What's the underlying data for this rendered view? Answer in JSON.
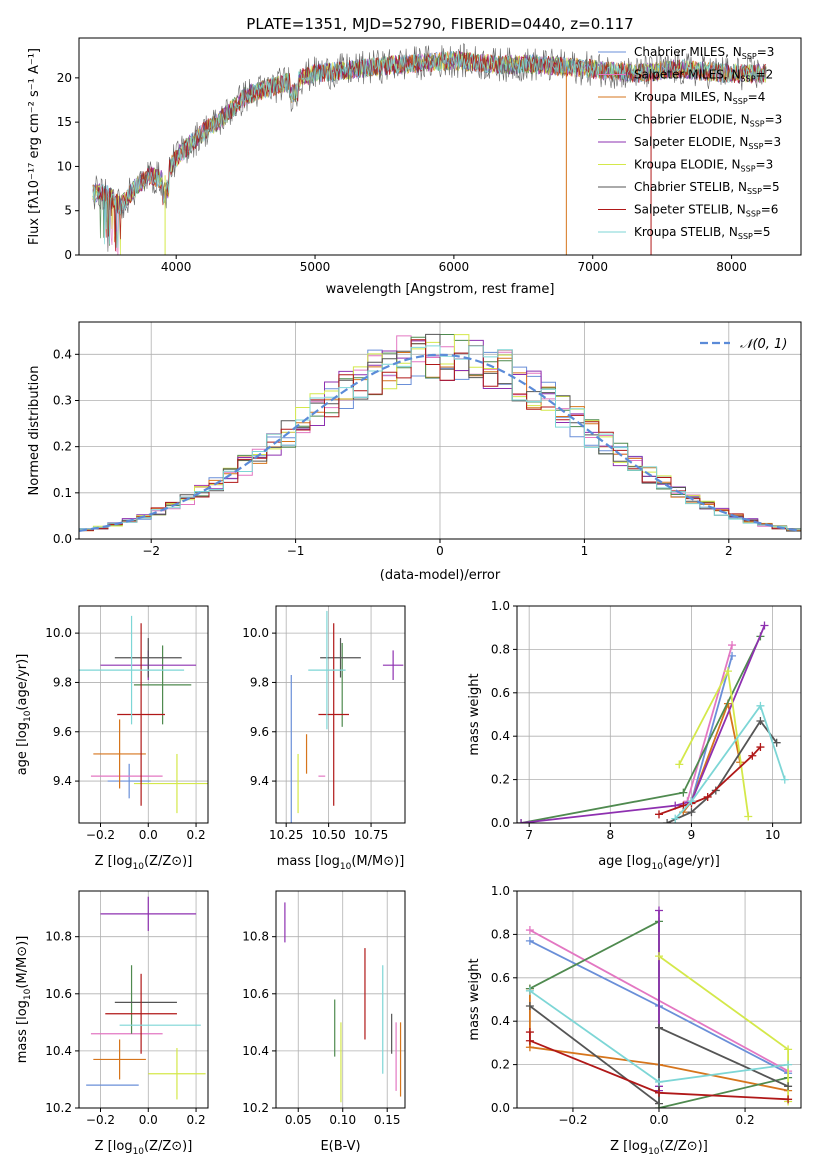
{
  "figure": {
    "title": "PLATE=1351, MJD=52790, FIBERID=0440, z=0.117"
  },
  "colors": {
    "chabrier_miles": "#6a8fd8",
    "salpeter_miles": "#e377c2",
    "kroupa_miles": "#d6751c",
    "chabrier_elodie": "#4f8a4f",
    "salpeter_elodie": "#8e30b0",
    "kroupa_elodie": "#d4e84a",
    "chabrier_stelib": "#555555",
    "salpeter_stelib": "#b01818",
    "kroupa_stelib": "#7dd6d6",
    "normal": "#5b8bd8",
    "grid": "#b0b0b0"
  },
  "chart_data": [
    {
      "type": "line",
      "title": "PLATE=1351, MJD=52790, FIBERID=0440, z=0.117",
      "xlabel": "wavelength [Angstrom, rest frame]",
      "ylabel": "Flux [fλ10⁻¹⁷ erg cm⁻² s⁻¹ A⁻¹]",
      "xlim": [
        3300,
        8500
      ],
      "ylim": [
        0,
        24.5
      ],
      "xticks": [
        4000,
        5000,
        6000,
        7000,
        8000
      ],
      "yticks": [
        0,
        5,
        10,
        15,
        20
      ],
      "xticklabels": [
        "4000",
        "5000",
        "6000",
        "7000",
        "8000"
      ],
      "yticklabels": [
        "0",
        "5",
        "10",
        "15",
        "20"
      ],
      "grid": false,
      "legend": "upper right",
      "series": [
        {
          "name": "Chabrier MILES, N_SSP=3",
          "name_main": "Chabrier MILES, N",
          "name_sub": "SSP",
          "name_tail": "=3",
          "color": "chabrier_miles"
        },
        {
          "name": "Salpeter MILES, N_SSP=2",
          "name_main": "Salpeter MILES, N",
          "name_sub": "SSP",
          "name_tail": "=2",
          "color": "salpeter_miles"
        },
        {
          "name": "Kroupa MILES, N_SSP=4",
          "name_main": "Kroupa MILES, N",
          "name_sub": "SSP",
          "name_tail": "=4",
          "color": "kroupa_miles"
        },
        {
          "name": "Chabrier ELODIE, N_SSP=3",
          "name_main": "Chabrier ELODIE, N",
          "name_sub": "SSP",
          "name_tail": "=3",
          "color": "chabrier_elodie"
        },
        {
          "name": "Salpeter ELODIE, N_SSP=3",
          "name_main": "Salpeter ELODIE, N",
          "name_sub": "SSP",
          "name_tail": "=3",
          "color": "salpeter_elodie"
        },
        {
          "name": "Kroupa ELODIE, N_SSP=3",
          "name_main": "Kroupa ELODIE, N",
          "name_sub": "SSP",
          "name_tail": "=3",
          "color": "kroupa_elodie"
        },
        {
          "name": "Chabrier STELIB, N_SSP=5",
          "name_main": "Chabrier STELIB, N",
          "name_sub": "SSP",
          "name_tail": "=5",
          "color": "chabrier_stelib"
        },
        {
          "name": "Salpeter STELIB, N_SSP=6",
          "name_main": "Salpeter STELIB, N",
          "name_sub": "SSP",
          "name_tail": "=6",
          "color": "salpeter_stelib"
        },
        {
          "name": "Kroupa STELIB, N_SSP=5",
          "name_main": "Kroupa STELIB, N",
          "name_sub": "SSP",
          "name_tail": "=5",
          "color": "kroupa_stelib"
        }
      ],
      "spectrum_envelope": {
        "x": [
          3400,
          3500,
          3600,
          3700,
          3800,
          3900,
          4000,
          4100,
          4200,
          4300,
          4400,
          4500,
          4700,
          5000,
          5300,
          5600,
          6000,
          6300,
          6600,
          7000,
          7300,
          7600,
          8000,
          8250
        ],
        "y": [
          7,
          7,
          5.5,
          7.5,
          9,
          8.5,
          11,
          12.5,
          14,
          15,
          16.5,
          18,
          19,
          20.5,
          21,
          21.5,
          22,
          21.5,
          21.5,
          21,
          20.5,
          21,
          20.5,
          20.5
        ]
      },
      "spikes": [
        {
          "x": 3920,
          "y": 0,
          "color": "kroupa_elodie"
        },
        {
          "x": 6810,
          "y": 0,
          "color": "kroupa_miles"
        },
        {
          "x": 7420,
          "y": 0,
          "color": "salpeter_stelib"
        }
      ]
    },
    {
      "type": "bar",
      "subtype": "step-histogram",
      "xlabel": "(data-model)/error",
      "ylabel": "Normed distribution",
      "xlim": [
        -2.5,
        2.5
      ],
      "ylim": [
        0,
        0.47
      ],
      "xticks": [
        -2,
        -1,
        0,
        1,
        2
      ],
      "yticks": [
        0,
        0.1,
        0.2,
        0.3,
        0.4
      ],
      "xticklabels": [
        "−2",
        "−1",
        "0",
        "1",
        "2"
      ],
      "yticklabels": [
        "0.0",
        "0.1",
        "0.2",
        "0.3",
        "0.4"
      ],
      "grid": true,
      "legend": "upper right",
      "bin_width": 0.1,
      "reference_curve": {
        "name": "𝒩(0, 1)",
        "style": "dashed",
        "color": "normal",
        "mean": 0,
        "sigma": 1
      }
    },
    {
      "type": "scatter",
      "subtype": "errorbar",
      "xlabel": "Z [log10(Z/Z⊙)]",
      "xlabel_main": "Z [log",
      "xlabel_sub": "10",
      "xlabel_tail": "(Z/Z⊙)]",
      "ylabel": "age [log10(age/yr)]",
      "ylabel_main": "age  [log",
      "ylabel_sub": "10",
      "ylabel_tail": "(age/yr)]",
      "xlim": [
        -0.29,
        0.25
      ],
      "ylim": [
        9.23,
        10.11
      ],
      "xticks": [
        -0.2,
        0,
        0.2
      ],
      "yticks": [
        9.4,
        9.6,
        9.8,
        10.0
      ],
      "xticklabels": [
        "−0.2",
        "0.0",
        "0.2"
      ],
      "yticklabels": [
        "9.4",
        "9.6",
        "9.8",
        "10.0"
      ],
      "grid": true,
      "points": [
        {
          "x": -0.08,
          "y": 9.4,
          "xerr": 0.09,
          "yerr": 0.07,
          "color": "chabrier_miles"
        },
        {
          "x": -0.09,
          "y": 9.42,
          "xerr": 0.15,
          "yerr": 0.0,
          "color": "salpeter_miles"
        },
        {
          "x": -0.12,
          "y": 9.51,
          "xerr": 0.11,
          "yerr": 0.14,
          "color": "kroupa_miles"
        },
        {
          "x": 0.06,
          "y": 9.79,
          "xerr": 0.12,
          "yerr": 0.16,
          "color": "chabrier_elodie"
        },
        {
          "x": 0.0,
          "y": 9.87,
          "xerr": 0.2,
          "yerr": 0.06,
          "color": "salpeter_elodie"
        },
        {
          "x": 0.12,
          "y": 9.39,
          "xerr": 0.18,
          "yerr": 0.12,
          "color": "kroupa_elodie"
        },
        {
          "x": 0.0,
          "y": 9.9,
          "xerr": 0.14,
          "yerr": 0.08,
          "color": "chabrier_stelib"
        },
        {
          "x": -0.03,
          "y": 9.67,
          "xerr": 0.1,
          "yerr": 0.37,
          "color": "salpeter_stelib"
        },
        {
          "x": -0.07,
          "y": 9.85,
          "xerr": 0.22,
          "yerr": 0.22,
          "color": "kroupa_stelib"
        }
      ]
    },
    {
      "type": "scatter",
      "subtype": "errorbar",
      "xlabel": "mass [log10(M/M⊙)]",
      "xlabel_main": "mass [log",
      "xlabel_sub": "10",
      "xlabel_tail": "(M/M⊙)]",
      "ylabel": "",
      "xlim": [
        10.19,
        10.95
      ],
      "ylim": [
        9.23,
        10.11
      ],
      "xticks": [
        10.25,
        10.5,
        10.75
      ],
      "yticks": [
        9.4,
        9.6,
        9.8,
        10.0
      ],
      "xticklabels": [
        "10.25",
        "10.50",
        "10.75"
      ],
      "yticklabels": [
        "9.4",
        "9.6",
        "9.8",
        "10.0"
      ],
      "grid": true,
      "points": [
        {
          "x": 10.28,
          "y": 9.4,
          "xerr": 0.0,
          "yerr": 0.43,
          "color": "chabrier_miles"
        },
        {
          "x": 10.46,
          "y": 9.42,
          "xerr": 0.02,
          "yerr": 0.0,
          "color": "salpeter_miles"
        },
        {
          "x": 10.37,
          "y": 9.51,
          "xerr": 0.0,
          "yerr": 0.08,
          "color": "kroupa_miles"
        },
        {
          "x": 10.58,
          "y": 9.79,
          "xerr": 0.0,
          "yerr": 0.17,
          "color": "chabrier_elodie"
        },
        {
          "x": 10.88,
          "y": 9.87,
          "xerr": 0.06,
          "yerr": 0.06,
          "color": "salpeter_elodie"
        },
        {
          "x": 10.32,
          "y": 9.39,
          "xerr": 0.0,
          "yerr": 0.12,
          "color": "kroupa_elodie"
        },
        {
          "x": 10.57,
          "y": 9.9,
          "xerr": 0.12,
          "yerr": 0.08,
          "color": "chabrier_stelib"
        },
        {
          "x": 10.53,
          "y": 9.67,
          "xerr": 0.09,
          "yerr": 0.37,
          "color": "salpeter_stelib"
        },
        {
          "x": 10.49,
          "y": 9.85,
          "xerr": 0.11,
          "yerr": 0.24,
          "color": "kroupa_stelib"
        }
      ]
    },
    {
      "type": "line",
      "xlabel": "age [log10(age/yr)]",
      "xlabel_main": "age  [log",
      "xlabel_sub": "10",
      "xlabel_tail": "(age/yr)]",
      "ylabel": "mass weight",
      "xlim": [
        6.85,
        10.35
      ],
      "ylim": [
        0,
        1
      ],
      "xticks": [
        7,
        8,
        9,
        10
      ],
      "yticks": [
        0,
        0.2,
        0.4,
        0.6,
        0.8,
        1.0
      ],
      "xticklabels": [
        "7",
        "8",
        "9",
        "10"
      ],
      "yticklabels": [
        "0.0",
        "0.2",
        "0.4",
        "0.6",
        "0.8",
        "1.0"
      ],
      "grid": true,
      "series": [
        {
          "color": "chabrier_miles",
          "x": [
            8.9,
            9.0,
            9.5
          ],
          "y": [
            0.05,
            0.1,
            0.77
          ]
        },
        {
          "color": "salpeter_miles",
          "x": [
            8.95,
            9.5
          ],
          "y": [
            0.1,
            0.82
          ]
        },
        {
          "color": "kroupa_miles",
          "x": [
            8.9,
            9.0,
            9.45,
            9.6
          ],
          "y": [
            0.05,
            0.1,
            0.55,
            0.28
          ]
        },
        {
          "color": "chabrier_elodie",
          "x": [
            6.9,
            8.9,
            9.85
          ],
          "y": [
            0.0,
            0.14,
            0.86
          ]
        },
        {
          "color": "salpeter_elodie",
          "x": [
            6.9,
            8.8,
            9.0,
            9.9
          ],
          "y": [
            0.0,
            0.08,
            0.1,
            0.91
          ]
        },
        {
          "color": "kroupa_elodie",
          "x": [
            8.85,
            9.45,
            9.7
          ],
          "y": [
            0.27,
            0.7,
            0.03
          ]
        },
        {
          "color": "chabrier_stelib",
          "x": [
            8.7,
            9.0,
            9.3,
            9.85,
            10.05
          ],
          "y": [
            0.0,
            0.05,
            0.15,
            0.47,
            0.37
          ]
        },
        {
          "color": "salpeter_stelib",
          "x": [
            8.6,
            8.9,
            9.0,
            9.2,
            9.75,
            9.85
          ],
          "y": [
            0.04,
            0.08,
            0.09,
            0.12,
            0.31,
            0.35
          ]
        },
        {
          "color": "kroupa_stelib",
          "x": [
            8.8,
            9.0,
            9.85,
            10.15
          ],
          "y": [
            0.02,
            0.1,
            0.54,
            0.2
          ]
        }
      ]
    },
    {
      "type": "scatter",
      "subtype": "errorbar",
      "xlabel": "Z [log10(Z/Z⊙)]",
      "xlabel_main": "Z [log",
      "xlabel_sub": "10",
      "xlabel_tail": "(Z/Z⊙)]",
      "ylabel": "mass [log10(M/M⊙)]",
      "ylabel_main": "mass [log",
      "ylabel_sub": "10",
      "ylabel_tail": "(M/M⊙)]",
      "xlim": [
        -0.29,
        0.25
      ],
      "ylim": [
        10.2,
        10.96
      ],
      "xticks": [
        -0.2,
        0,
        0.2
      ],
      "yticks": [
        10.2,
        10.4,
        10.6,
        10.8
      ],
      "xticklabels": [
        "−0.2",
        "0.0",
        "0.2"
      ],
      "yticklabels": [
        "10.2",
        "10.4",
        "10.6",
        "10.8"
      ],
      "grid": true,
      "points": [
        {
          "x": -0.15,
          "y": 10.28,
          "xerr": 0.11,
          "yerr": 0.0,
          "color": "chabrier_miles"
        },
        {
          "x": -0.09,
          "y": 10.46,
          "xerr": 0.15,
          "yerr": 0.0,
          "color": "salpeter_miles"
        },
        {
          "x": -0.12,
          "y": 10.37,
          "xerr": 0.11,
          "yerr": 0.07,
          "color": "kroupa_miles"
        },
        {
          "x": -0.07,
          "y": 10.58,
          "xerr": 0.0,
          "yerr": 0.12,
          "color": "chabrier_elodie"
        },
        {
          "x": 0.0,
          "y": 10.88,
          "xerr": 0.2,
          "yerr": 0.06,
          "color": "salpeter_elodie"
        },
        {
          "x": 0.12,
          "y": 10.32,
          "xerr": 0.12,
          "yerr": 0.09,
          "color": "kroupa_elodie"
        },
        {
          "x": -0.01,
          "y": 10.57,
          "xerr": 0.13,
          "yerr": 0.0,
          "color": "chabrier_stelib"
        },
        {
          "x": -0.03,
          "y": 10.53,
          "xerr": 0.15,
          "yerr": 0.14,
          "color": "salpeter_stelib"
        },
        {
          "x": 0.05,
          "y": 10.49,
          "xerr": 0.17,
          "yerr": 0.0,
          "color": "kroupa_stelib"
        }
      ]
    },
    {
      "type": "scatter",
      "subtype": "errorbar",
      "xlabel": "E(B-V)",
      "ylabel": "",
      "xlim": [
        0.025,
        0.17
      ],
      "ylim": [
        10.2,
        10.96
      ],
      "xticks": [
        0.05,
        0.1,
        0.15
      ],
      "yticks": [
        10.2,
        10.4,
        10.6,
        10.8
      ],
      "xticklabels": [
        "0.05",
        "0.10",
        "0.15"
      ],
      "yticklabels": [
        "10.2",
        "10.4",
        "10.6",
        "10.8"
      ],
      "grid": true,
      "points": [
        {
          "x": 0.035,
          "y": 10.85,
          "xerr": 0,
          "yerr": 0.07,
          "color": "salpeter_elodie"
        },
        {
          "x": 0.091,
          "y": 10.48,
          "xerr": 0,
          "yerr": 0.1,
          "color": "chabrier_elodie"
        },
        {
          "x": 0.098,
          "y": 10.36,
          "xerr": 0,
          "yerr": 0.14,
          "color": "kroupa_elodie"
        },
        {
          "x": 0.125,
          "y": 10.6,
          "xerr": 0,
          "yerr": 0.16,
          "color": "salpeter_stelib"
        },
        {
          "x": 0.145,
          "y": 10.51,
          "xerr": 0,
          "yerr": 0.19,
          "color": "kroupa_stelib"
        },
        {
          "x": 0.155,
          "y": 10.46,
          "xerr": 0,
          "yerr": 0.07,
          "color": "chabrier_stelib"
        },
        {
          "x": 0.16,
          "y": 10.38,
          "xerr": 0,
          "yerr": 0.12,
          "color": "salpeter_miles"
        },
        {
          "x": 0.165,
          "y": 10.37,
          "xerr": 0,
          "yerr": 0.13,
          "color": "kroupa_miles"
        }
      ]
    },
    {
      "type": "line",
      "xlabel": "Z [log10(Z/Z⊙)]",
      "xlabel_main": "Z [log",
      "xlabel_sub": "10",
      "xlabel_tail": "(Z/Z⊙)]",
      "ylabel": "mass weight",
      "xlim": [
        -0.33,
        0.33
      ],
      "ylim": [
        0,
        1
      ],
      "xticks": [
        -0.2,
        0,
        0.2
      ],
      "yticks": [
        0,
        0.2,
        0.4,
        0.6,
        0.8,
        1.0
      ],
      "xticklabels": [
        "−0.2",
        "0.0",
        "0.2"
      ],
      "yticklabels": [
        "0.0",
        "0.2",
        "0.4",
        "0.6",
        "0.8",
        "1.0"
      ],
      "grid": true,
      "series": [
        {
          "color": "chabrier_miles",
          "x": [
            -0.3,
            0.0,
            0.3
          ],
          "y": [
            0.77,
            0.47,
            0.16
          ]
        },
        {
          "color": "salpeter_miles",
          "x": [
            -0.3,
            0.3
          ],
          "y": [
            0.82,
            0.17
          ]
        },
        {
          "color": "kroupa_miles",
          "x": [
            -0.3,
            -0.3,
            0.0,
            0.3
          ],
          "y": [
            0.55,
            0.28,
            0.2,
            0.08
          ]
        },
        {
          "color": "chabrier_elodie",
          "x": [
            -0.3,
            0.0,
            0.0,
            0.3
          ],
          "y": [
            0.55,
            0.86,
            0.0,
            0.14
          ]
        },
        {
          "color": "salpeter_elodie",
          "x": [
            0.0,
            0.0,
            0.0
          ],
          "y": [
            0.91,
            0.1,
            0.08
          ]
        },
        {
          "color": "kroupa_elodie",
          "x": [
            0.0,
            0.3,
            0.3
          ],
          "y": [
            0.7,
            0.27,
            0.03
          ]
        },
        {
          "color": "chabrier_stelib",
          "x": [
            -0.3,
            0.0,
            0.0,
            0.3
          ],
          "y": [
            0.47,
            0.02,
            0.37,
            0.1
          ]
        },
        {
          "color": "salpeter_stelib",
          "x": [
            -0.3,
            -0.3,
            0.0,
            0.3
          ],
          "y": [
            0.35,
            0.31,
            0.07,
            0.04
          ]
        },
        {
          "color": "kroupa_stelib",
          "x": [
            -0.3,
            0.0,
            0.3
          ],
          "y": [
            0.54,
            0.12,
            0.2
          ]
        }
      ]
    }
  ]
}
